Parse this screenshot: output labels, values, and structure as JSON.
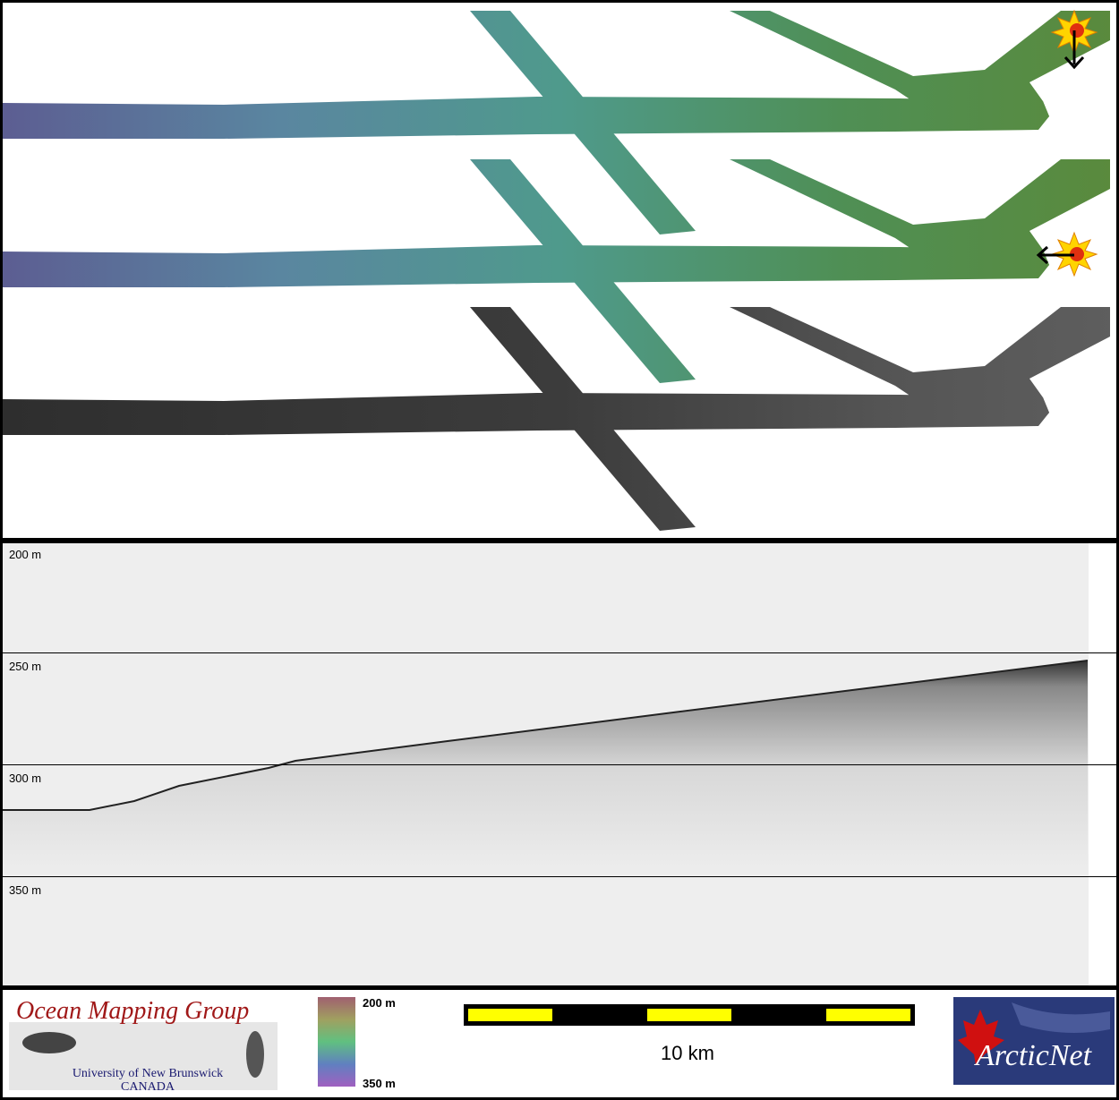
{
  "profile": {
    "depth_labels": [
      "200 m",
      "250 m",
      "300 m",
      "350 m"
    ]
  },
  "colorbar": {
    "top_label": "200 m",
    "bottom_label": "350 m"
  },
  "scale_bar": {
    "label": "10 km"
  },
  "logos": {
    "omg_title": "Ocean Mapping Group",
    "omg_university": "University of New Brunswick",
    "omg_country": "CANADA",
    "arcticnet": "ArcticNet"
  }
}
